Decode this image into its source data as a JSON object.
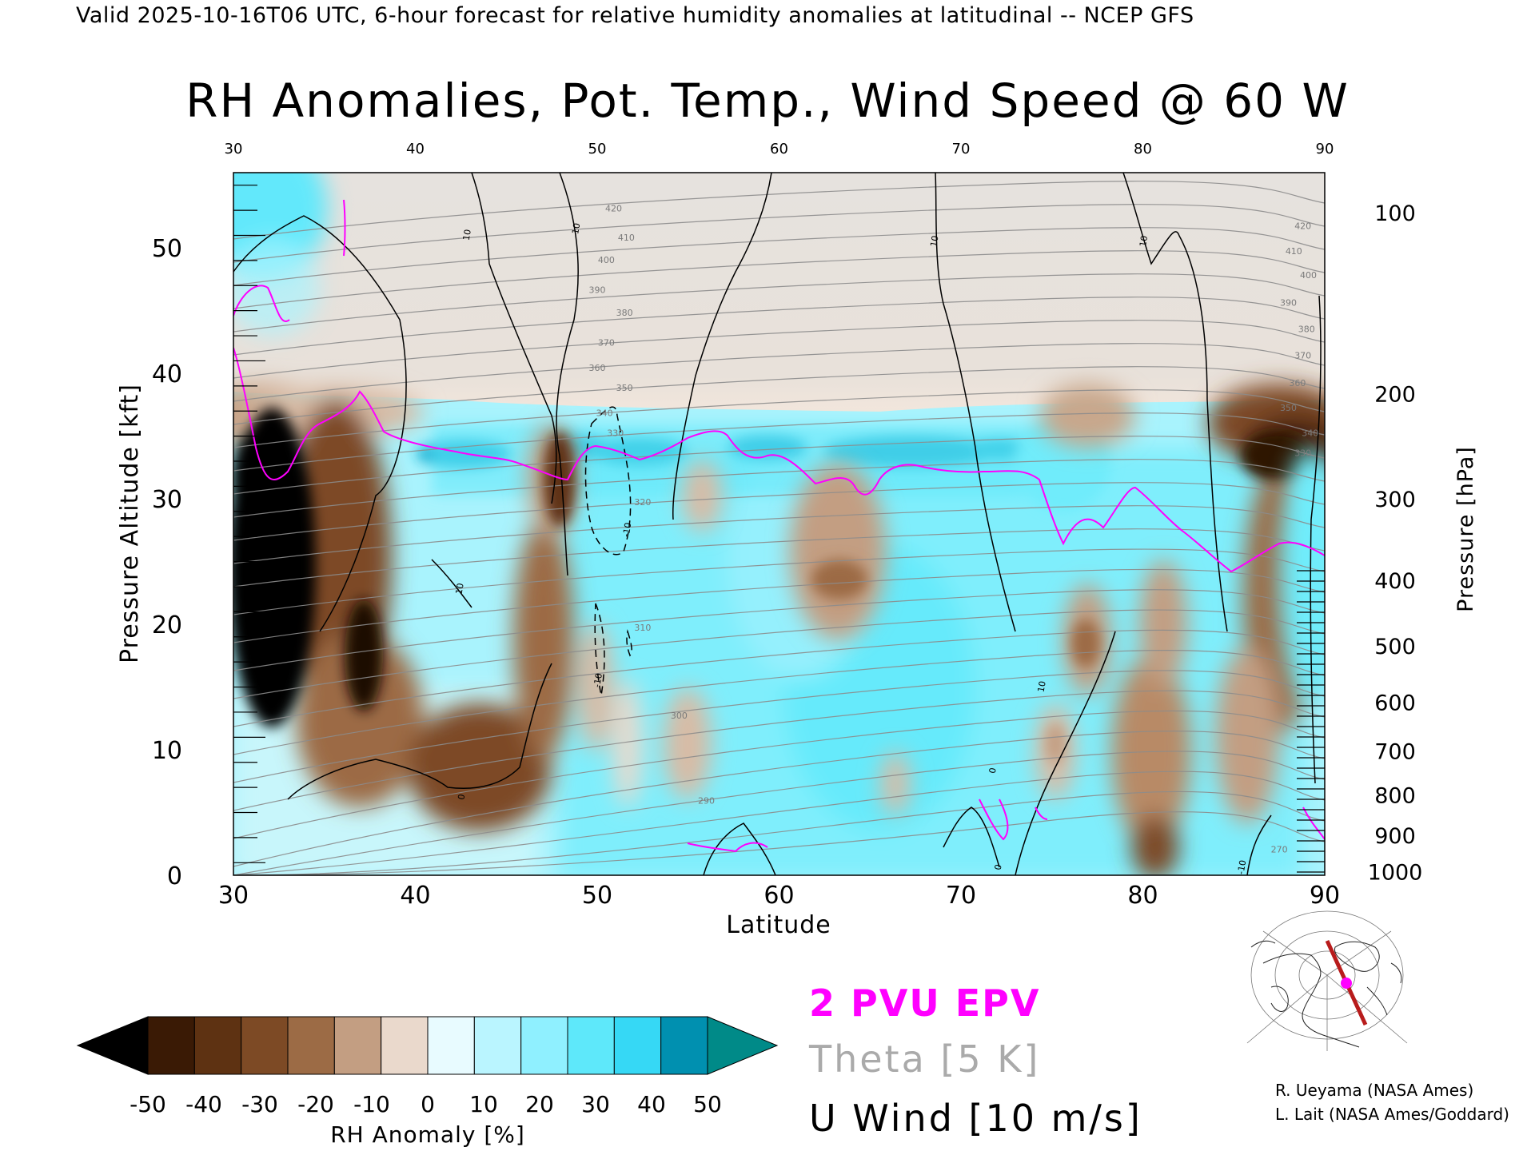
{
  "header": {
    "valid_line": "Valid 2025-10-16T06 UTC, 6-hour forecast for relative humidity anomalies at latitudinal -- NCEP GFS",
    "title": "RH Anomalies, Pot. Temp., Wind Speed @ 60 W"
  },
  "chart_data": {
    "type": "heatmap",
    "title": "RH Anomalies, Pot. Temp., Wind Speed @ 60 W",
    "xlabel": "Latitude",
    "ylabel": "Pressure Altitude [kft]",
    "y2label": "Pressure [hPa]",
    "xlim": [
      30,
      90
    ],
    "ylim": [
      0,
      56
    ],
    "x_ticks": [
      "30",
      "40",
      "50",
      "60",
      "70",
      "80",
      "90"
    ],
    "y_ticks": [
      "0",
      "10",
      "20",
      "30",
      "40",
      "50"
    ],
    "pressure_ticks": [
      {
        "label": "100",
        "kft": 52.8
      },
      {
        "label": "200",
        "kft": 38.4
      },
      {
        "label": "300",
        "kft": 30.0
      },
      {
        "label": "400",
        "kft": 23.5
      },
      {
        "label": "500",
        "kft": 18.3
      },
      {
        "label": "600",
        "kft": 13.8
      },
      {
        "label": "700",
        "kft": 9.9
      },
      {
        "label": "800",
        "kft": 6.4
      },
      {
        "label": "900",
        "kft": 3.2
      },
      {
        "label": "1000",
        "kft": 0.3
      }
    ],
    "theta_labels": [
      {
        "value": "420",
        "lat": 50.9,
        "kft": 52.9
      },
      {
        "value": "410",
        "lat": 51.6,
        "kft": 50.6
      },
      {
        "value": "400",
        "lat": 50.5,
        "kft": 48.8
      },
      {
        "value": "390",
        "lat": 50.0,
        "kft": 46.4
      },
      {
        "value": "380",
        "lat": 51.5,
        "kft": 44.6
      },
      {
        "value": "370",
        "lat": 50.5,
        "kft": 42.2
      },
      {
        "value": "360",
        "lat": 50.0,
        "kft": 40.2
      },
      {
        "value": "350",
        "lat": 51.5,
        "kft": 38.6
      },
      {
        "value": "340",
        "lat": 50.4,
        "kft": 36.6
      },
      {
        "value": "330",
        "lat": 51.0,
        "kft": 35.0
      },
      {
        "value": "320",
        "lat": 52.5,
        "kft": 29.5
      },
      {
        "value": "310",
        "lat": 52.5,
        "kft": 19.5
      },
      {
        "value": "300",
        "lat": 54.5,
        "kft": 12.5
      },
      {
        "value": "290",
        "lat": 56.0,
        "kft": 5.7
      },
      {
        "value": "420",
        "lat": 88.8,
        "kft": 51.5
      },
      {
        "value": "410",
        "lat": 88.3,
        "kft": 49.5
      },
      {
        "value": "400",
        "lat": 89.1,
        "kft": 47.6
      },
      {
        "value": "390",
        "lat": 88.0,
        "kft": 45.4
      },
      {
        "value": "380",
        "lat": 89.0,
        "kft": 43.3
      },
      {
        "value": "370",
        "lat": 88.8,
        "kft": 41.2
      },
      {
        "value": "360",
        "lat": 88.5,
        "kft": 39.0
      },
      {
        "value": "350",
        "lat": 88.0,
        "kft": 37.0
      },
      {
        "value": "340",
        "lat": 89.2,
        "kft": 35.0
      },
      {
        "value": "330",
        "lat": 88.8,
        "kft": 33.4
      },
      {
        "value": "270",
        "lat": 87.5,
        "kft": 1.8
      }
    ],
    "wind_labels": [
      {
        "value": "10",
        "lat": 43.0,
        "kft": 51.0
      },
      {
        "value": "10",
        "lat": 49.0,
        "kft": 51.5
      },
      {
        "value": "10",
        "lat": 68.7,
        "kft": 50.5
      },
      {
        "value": "10",
        "lat": 80.2,
        "kft": 50.5
      },
      {
        "value": "10",
        "lat": 42.6,
        "kft": 22.8
      },
      {
        "value": "-10",
        "lat": 51.8,
        "kft": 27.5
      },
      {
        "value": "-10",
        "lat": 50.2,
        "kft": 15.5
      },
      {
        "value": "0",
        "lat": 42.7,
        "kft": 6.2
      },
      {
        "value": "10",
        "lat": 74.6,
        "kft": 15.0
      },
      {
        "value": "0",
        "lat": 71.9,
        "kft": 8.3
      },
      {
        "value": "0",
        "lat": 72.2,
        "kft": 0.6
      },
      {
        "value": "-10",
        "lat": 85.6,
        "kft": 0.6
      }
    ],
    "series": [
      {
        "name": "2 PVU EPV",
        "color": "#ff00ff"
      },
      {
        "name": "Theta [5 K]",
        "color": "#aaaaaa"
      },
      {
        "name": "U Wind [10 m/s]",
        "color": "#000000"
      }
    ],
    "colorbar": {
      "label": "RH Anomaly [%]",
      "ticks": [
        "-50",
        "-40",
        "-30",
        "-20",
        "-10",
        "0",
        "10",
        "20",
        "30",
        "40",
        "50"
      ],
      "colors": [
        "#000000",
        "#3a1a05",
        "#5e3212",
        "#7d4a25",
        "#9c6b45",
        "#c39e82",
        "#ead9cc",
        "#e8fbff",
        "#baf5ff",
        "#8ff0ff",
        "#5ee8fa",
        "#36d8f5",
        "#0090b0",
        "#008a88"
      ]
    }
  },
  "legend": {
    "epv": "2 PVU EPV",
    "theta": "Theta [5 K]",
    "uwind": "U Wind [10 m/s]"
  },
  "credits": {
    "line1": "R. Ueyama (NASA Ames)",
    "line2": "L. Lait (NASA Ames/Goddard)"
  }
}
